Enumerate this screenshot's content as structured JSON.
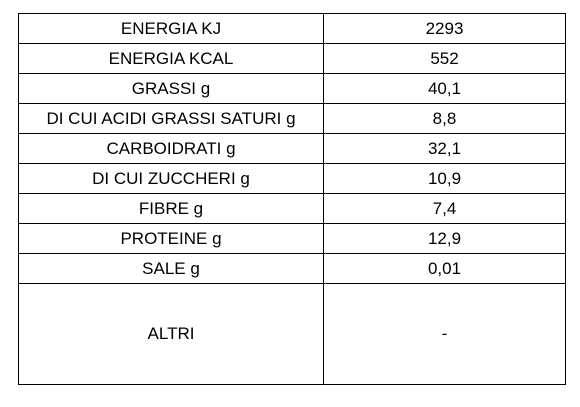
{
  "table": {
    "rows": [
      [
        "ENERGIA KJ",
        "2293"
      ],
      [
        "ENERGIA KCAL",
        "552"
      ],
      [
        "GRASSI g",
        "40,1"
      ],
      [
        "DI CUI ACIDI GRASSI SATURI g",
        "8,8"
      ],
      [
        "CARBOIDRATI g",
        "32,1"
      ],
      [
        "DI CUI ZUCCHERI g",
        "10,9"
      ],
      [
        "FIBRE g",
        "7,4"
      ],
      [
        "PROTEINE g",
        "12,9"
      ],
      [
        "SALE g",
        "0,01"
      ],
      [
        "ALTRI",
        "-"
      ]
    ]
  }
}
